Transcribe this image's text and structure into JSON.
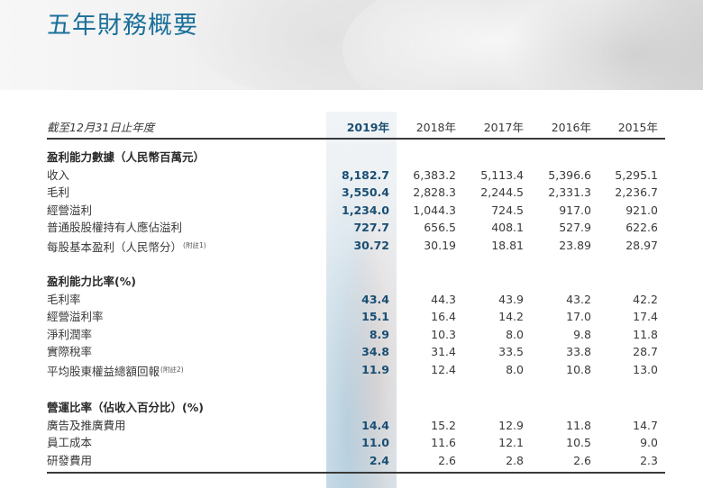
{
  "title": "五年財務概要",
  "header": {
    "label": "截至12月31日止年度",
    "years": [
      "2019年",
      "2018年",
      "2017年",
      "2016年",
      "2015年"
    ]
  },
  "sections": [
    {
      "heading": "盈利能力數據（人民幣百萬元）",
      "rows": [
        {
          "label": "收入",
          "note": "",
          "values": [
            "8,182.7",
            "6,383.2",
            "5,113.4",
            "5,396.6",
            "5,295.1"
          ]
        },
        {
          "label": "毛利",
          "note": "",
          "values": [
            "3,550.4",
            "2,828.3",
            "2,244.5",
            "2,331.3",
            "2,236.7"
          ]
        },
        {
          "label": "經營溢利",
          "note": "",
          "values": [
            "1,234.0",
            "1,044.3",
            "724.5",
            "917.0",
            "921.0"
          ]
        },
        {
          "label": "普通股股權持有人應佔溢利",
          "note": "",
          "values": [
            "727.7",
            "656.5",
            "408.1",
            "527.9",
            "622.6"
          ]
        },
        {
          "label": "每股基本盈利（人民幣分）",
          "note": "(附註1)",
          "values": [
            "30.72",
            "30.19",
            "18.81",
            "23.89",
            "28.97"
          ]
        }
      ]
    },
    {
      "heading": "盈利能力比率(%)",
      "rows": [
        {
          "label": "毛利率",
          "note": "",
          "values": [
            "43.4",
            "44.3",
            "43.9",
            "43.2",
            "42.2"
          ]
        },
        {
          "label": "經營溢利率",
          "note": "",
          "values": [
            "15.1",
            "16.4",
            "14.2",
            "17.0",
            "17.4"
          ]
        },
        {
          "label": "淨利潤率",
          "note": "",
          "values": [
            "8.9",
            "10.3",
            "8.0",
            "9.8",
            "11.8"
          ]
        },
        {
          "label": "實際稅率",
          "note": "",
          "values": [
            "34.8",
            "31.4",
            "33.5",
            "33.8",
            "28.7"
          ]
        },
        {
          "label": "平均股東權益總額回報",
          "note": "(附註2)",
          "values": [
            "11.9",
            "12.4",
            "8.0",
            "10.8",
            "13.0"
          ]
        }
      ]
    },
    {
      "heading": "營運比率（佔收入百分比）(%)",
      "rows": [
        {
          "label": "廣告及推廣費用",
          "note": "",
          "values": [
            "14.4",
            "15.2",
            "12.9",
            "11.8",
            "14.7"
          ]
        },
        {
          "label": "員工成本",
          "note": "",
          "values": [
            "11.0",
            "11.6",
            "12.1",
            "10.5",
            "9.0"
          ]
        },
        {
          "label": "研發費用",
          "note": "",
          "values": [
            "2.4",
            "2.6",
            "2.8",
            "2.6",
            "2.3"
          ]
        }
      ]
    }
  ]
}
